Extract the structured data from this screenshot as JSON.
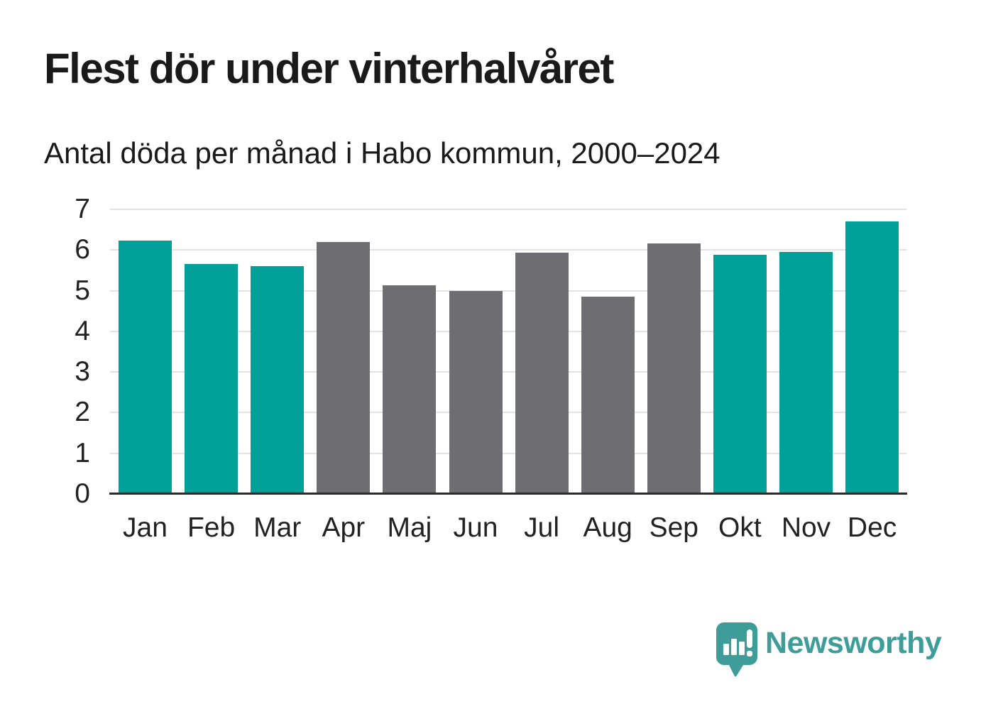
{
  "header": {
    "title": "Flest dör under vinterhalvåret",
    "subtitle": "Antal döda per månad i Habo kommun, 2000–2024"
  },
  "chart_data": {
    "type": "bar",
    "title": "Flest dör under vinterhalvåret",
    "subtitle": "Antal döda per månad i Habo kommun, 2000–2024",
    "categories": [
      "Jan",
      "Feb",
      "Mar",
      "Apr",
      "Maj",
      "Jun",
      "Jul",
      "Aug",
      "Sep",
      "Okt",
      "Nov",
      "Dec"
    ],
    "values": [
      6.24,
      5.65,
      5.6,
      6.2,
      5.13,
      5.0,
      5.93,
      4.85,
      6.17,
      5.88,
      5.95,
      6.7
    ],
    "bar_colors": [
      "#00a099",
      "#00a099",
      "#00a099",
      "#6d6d72",
      "#6d6d72",
      "#6d6d72",
      "#6d6d72",
      "#6d6d72",
      "#6d6d72",
      "#00a099",
      "#00a099",
      "#00a099"
    ],
    "xlabel": "",
    "ylabel": "",
    "ylim": [
      0,
      7
    ],
    "yticks": [
      0,
      1,
      2,
      3,
      4,
      5,
      6,
      7
    ],
    "grid": true,
    "legend_position": "none"
  },
  "colors": {
    "teal": "#00a099",
    "gray": "#6d6d72",
    "gridline": "#e3e3e3",
    "axis_line": "#2b2b2e",
    "text": "#1a1a1a",
    "brand_teal": "#3f9d99"
  },
  "footer": {
    "brand": "Newsworthy",
    "logo_icon": "bar-chart-speech-bubble-icon"
  }
}
